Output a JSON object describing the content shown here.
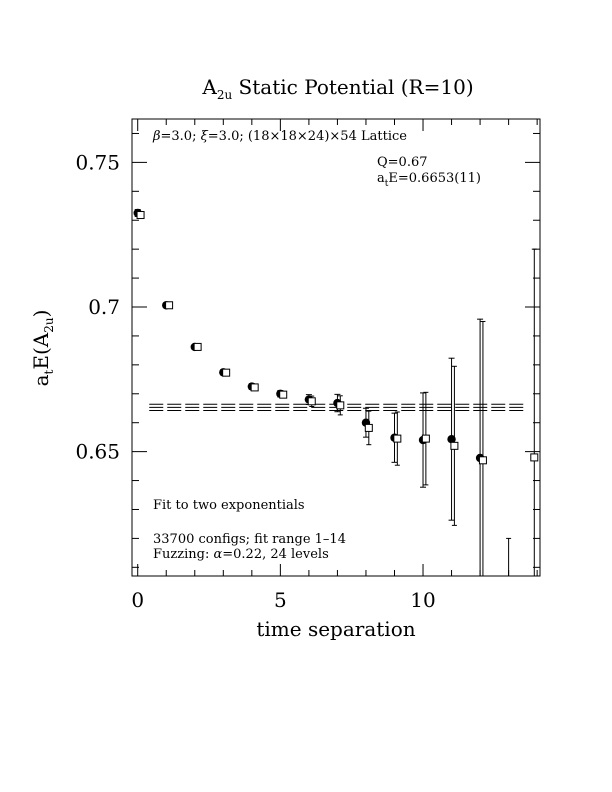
{
  "chart_data": {
    "type": "scatter",
    "title": "A2u Static Potential (R=10)",
    "title_main": "A",
    "title_sub": "2u",
    "title_rest": " Static Potential (R=10)",
    "xlabel": "time separation",
    "ylabel": "a_t E(A_2u)",
    "ylabel_parts": {
      "a": "a",
      "t": "t",
      "E": "E(A",
      "sub": "2u",
      "close": ")"
    },
    "xlim": [
      -0.2,
      14.1
    ],
    "ylim": [
      0.607,
      0.765
    ],
    "x_ticks": [
      0,
      5,
      10
    ],
    "x_tick_labels": [
      "0",
      "5",
      "10"
    ],
    "y_ticks": [
      0.65,
      0.7,
      0.75
    ],
    "y_tick_labels": [
      "0.65",
      "0.7",
      "0.75"
    ],
    "grid": false,
    "legend": "none",
    "series": [
      {
        "marker": "filled-circle",
        "points": [
          {
            "x": 0,
            "y": 0.7325,
            "err": 0.0012
          },
          {
            "x": 1,
            "y": 0.7006,
            "err": 0.0007
          },
          {
            "x": 2,
            "y": 0.6862,
            "err": 0.0008
          },
          {
            "x": 3,
            "y": 0.6774,
            "err": 0.0009
          },
          {
            "x": 4,
            "y": 0.6725,
            "err": 0.001
          },
          {
            "x": 5,
            "y": 0.67,
            "err": 0.0011
          },
          {
            "x": 6,
            "y": 0.668,
            "err": 0.0017
          },
          {
            "x": 7,
            "y": 0.6668,
            "err": 0.003
          },
          {
            "x": 8,
            "y": 0.66,
            "err": 0.005
          },
          {
            "x": 9,
            "y": 0.6548,
            "err": 0.0085
          },
          {
            "x": 10,
            "y": 0.654,
            "err": 0.0163
          },
          {
            "x": 11,
            "y": 0.6543,
            "err": 0.028
          },
          {
            "x": 12,
            "y": 0.6478,
            "err": 0.048
          }
        ]
      },
      {
        "marker": "open-square",
        "points": [
          {
            "x": 0.1,
            "y": 0.7318,
            "err": 0.0012
          },
          {
            "x": 1.1,
            "y": 0.7006,
            "err": 0.0007
          },
          {
            "x": 2.1,
            "y": 0.6862,
            "err": 0.0008
          },
          {
            "x": 3.1,
            "y": 0.6773,
            "err": 0.0009
          },
          {
            "x": 4.1,
            "y": 0.6722,
            "err": 0.001
          },
          {
            "x": 5.1,
            "y": 0.6697,
            "err": 0.0011
          },
          {
            "x": 6.1,
            "y": 0.6674,
            "err": 0.0018
          },
          {
            "x": 7.1,
            "y": 0.666,
            "err": 0.0033
          },
          {
            "x": 8.1,
            "y": 0.6582,
            "err": 0.0058
          },
          {
            "x": 9.1,
            "y": 0.6545,
            "err": 0.0092
          },
          {
            "x": 10.1,
            "y": 0.6545,
            "err": 0.016
          },
          {
            "x": 11.1,
            "y": 0.652,
            "err": 0.0275
          },
          {
            "x": 12.1,
            "y": 0.647,
            "err": 0.048
          },
          {
            "x": 13.0,
            "y": 0.6,
            "err": 0.02
          },
          {
            "x": 13.9,
            "y": 0.648,
            "err": 0.072
          }
        ]
      }
    ],
    "fit": {
      "label": "Fit to two exponentials",
      "x_range": [
        1,
        14
      ],
      "center": 0.6653,
      "error": 0.0011,
      "style": "dashed"
    },
    "annotations": {
      "lattice_beta": "β",
      "lattice_xi": "ξ",
      "lattice_beta_text": "=3.0; ",
      "lattice_xi_text": "=3.0; (18×18×24)×54 Lattice",
      "q": "Q=0.67",
      "energy_a": "a",
      "energy_t": "t",
      "energy_text": "E=0.6653(11)",
      "fit_label": "Fit to two exponentials",
      "configs": "33700 configs; fit range 1–14",
      "fuzzing_prefix": "Fuzzing: ",
      "fuzzing_alpha": "α",
      "fuzzing_rest": "=0.22, 24 levels"
    }
  }
}
